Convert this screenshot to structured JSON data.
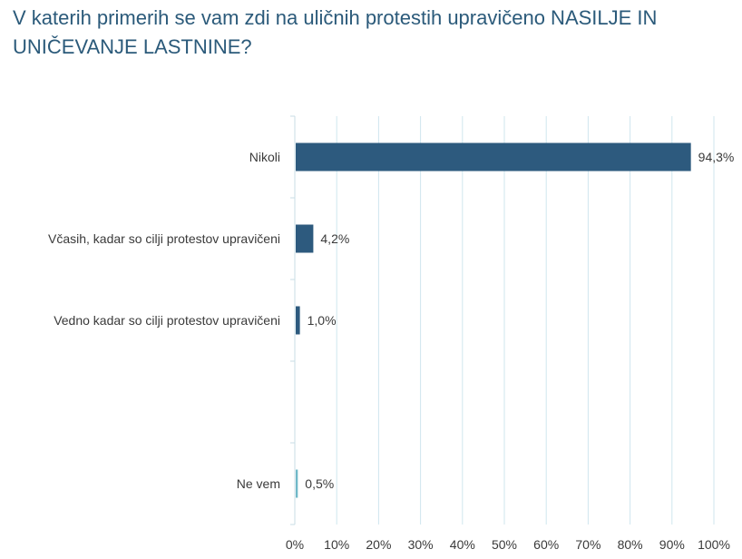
{
  "title": "V katerih primerih se vam zdi na uličnih protestih upravičeno NASILJE IN UNIČEVANJE LASTNINE?",
  "colors": {
    "bar": "#2d5a7e",
    "bar_alt": "#6fb8c8",
    "grid": "#cfe6ee",
    "axis": "#c8dde4"
  },
  "chart_data": {
    "type": "bar",
    "orientation": "horizontal",
    "title": "V katerih primerih se vam zdi na uličnih protestih upravičeno NASILJE IN UNIČEVANJE LASTNINE?",
    "categories": [
      "Nikoli",
      "Včasih, kadar so cilji protestov upravičeni",
      "Vedno kadar so cilji protestov upravičeni",
      "",
      "Ne vem"
    ],
    "values": [
      94.3,
      4.2,
      1.0,
      null,
      0.5
    ],
    "data_labels": [
      "94,3%",
      "4,2%",
      "1,0%",
      "",
      "0,5%"
    ],
    "xlim": [
      0,
      100
    ],
    "x_ticks": [
      0,
      10,
      20,
      30,
      40,
      50,
      60,
      70,
      80,
      90,
      100
    ],
    "x_tick_labels": [
      "0%",
      "10%",
      "20%",
      "30%",
      "40%",
      "50%",
      "60%",
      "70%",
      "80%",
      "90%",
      "100%"
    ],
    "grid": true,
    "legend": "none"
  }
}
